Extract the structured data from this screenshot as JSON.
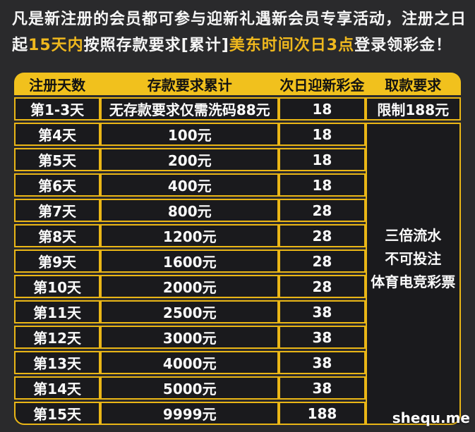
{
  "page": {
    "background": "#2a2a2c",
    "gold": "#f1c11d",
    "watermark": "shequ.me"
  },
  "intro": {
    "line1": "凡是新注册的会员都可参与迎新礼遇新会员专享活动，注册之日",
    "line2": {
      "p1": "起",
      "p2": "15天内",
      "p3": "按照存款要求[累计]",
      "p4": "美东时间次日3点",
      "p5": "登录领彩金！"
    }
  },
  "table": {
    "headers": [
      "注册天数",
      "存款要求累计",
      "次日迎新彩金",
      "取款要求"
    ],
    "rows": [
      {
        "cells": [
          "第1-3天",
          "无存款要求仅需洗码88元",
          "18",
          "限制188元"
        ]
      },
      {
        "cells": [
          "第4天",
          "100元",
          "18"
        ]
      },
      {
        "cells": [
          "第5天",
          "200元",
          "18"
        ]
      },
      {
        "cells": [
          "第6天",
          "400元",
          "18"
        ]
      },
      {
        "cells": [
          "第7天",
          "800元",
          "28"
        ]
      },
      {
        "cells": [
          "第8天",
          "1200元",
          "28"
        ]
      },
      {
        "cells": [
          "第9天",
          "1600元",
          "28"
        ]
      },
      {
        "cells": [
          "第10天",
          "2000元",
          "28"
        ]
      },
      {
        "cells": [
          "第11天",
          "2500元",
          "38"
        ]
      },
      {
        "cells": [
          "第12天",
          "3000元",
          "38"
        ]
      },
      {
        "cells": [
          "第13天",
          "4000元",
          "38"
        ]
      },
      {
        "cells": [
          "第14天",
          "5000元",
          "38"
        ]
      },
      {
        "cells": [
          "第15天",
          "9999元",
          "188"
        ]
      }
    ],
    "merged_note": {
      "lines": [
        "三倍流水",
        "不可投注",
        "体育电竞彩票"
      ]
    }
  }
}
